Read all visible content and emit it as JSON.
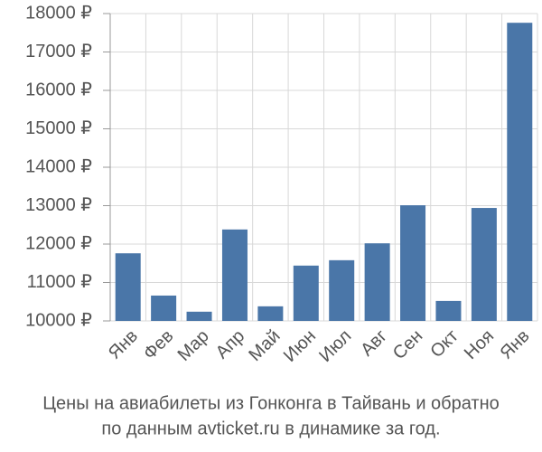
{
  "chart_data": {
    "type": "bar",
    "title": "Цены на авиабилеты из Гонконга в Тайвань и обратно",
    "subtitle": "по данным avticket.ru в динамике за год.",
    "categories": [
      "Янв",
      "Фев",
      "Мар",
      "Апр",
      "Май",
      "Июн",
      "Июл",
      "Авг",
      "Сен",
      "Окт",
      "Ноя",
      "Янв"
    ],
    "values": [
      11760,
      10660,
      10240,
      12380,
      10380,
      11440,
      11580,
      12020,
      13010,
      10520,
      12940,
      17760
    ],
    "color": "#4a76a8",
    "ylim": [
      10000,
      18000
    ],
    "yticks": [
      {
        "value": 10000,
        "label": "10000 ₽"
      },
      {
        "value": 11000,
        "label": "11000 ₽"
      },
      {
        "value": 12000,
        "label": "12000 ₽"
      },
      {
        "value": 13000,
        "label": "13000 ₽"
      },
      {
        "value": 14000,
        "label": "14000 ₽"
      },
      {
        "value": 15000,
        "label": "15000 ₽"
      },
      {
        "value": 16000,
        "label": "16000 ₽"
      },
      {
        "value": 17000,
        "label": "17000 ₽"
      },
      {
        "value": 18000,
        "label": "18000 ₽"
      }
    ],
    "grid": true
  }
}
